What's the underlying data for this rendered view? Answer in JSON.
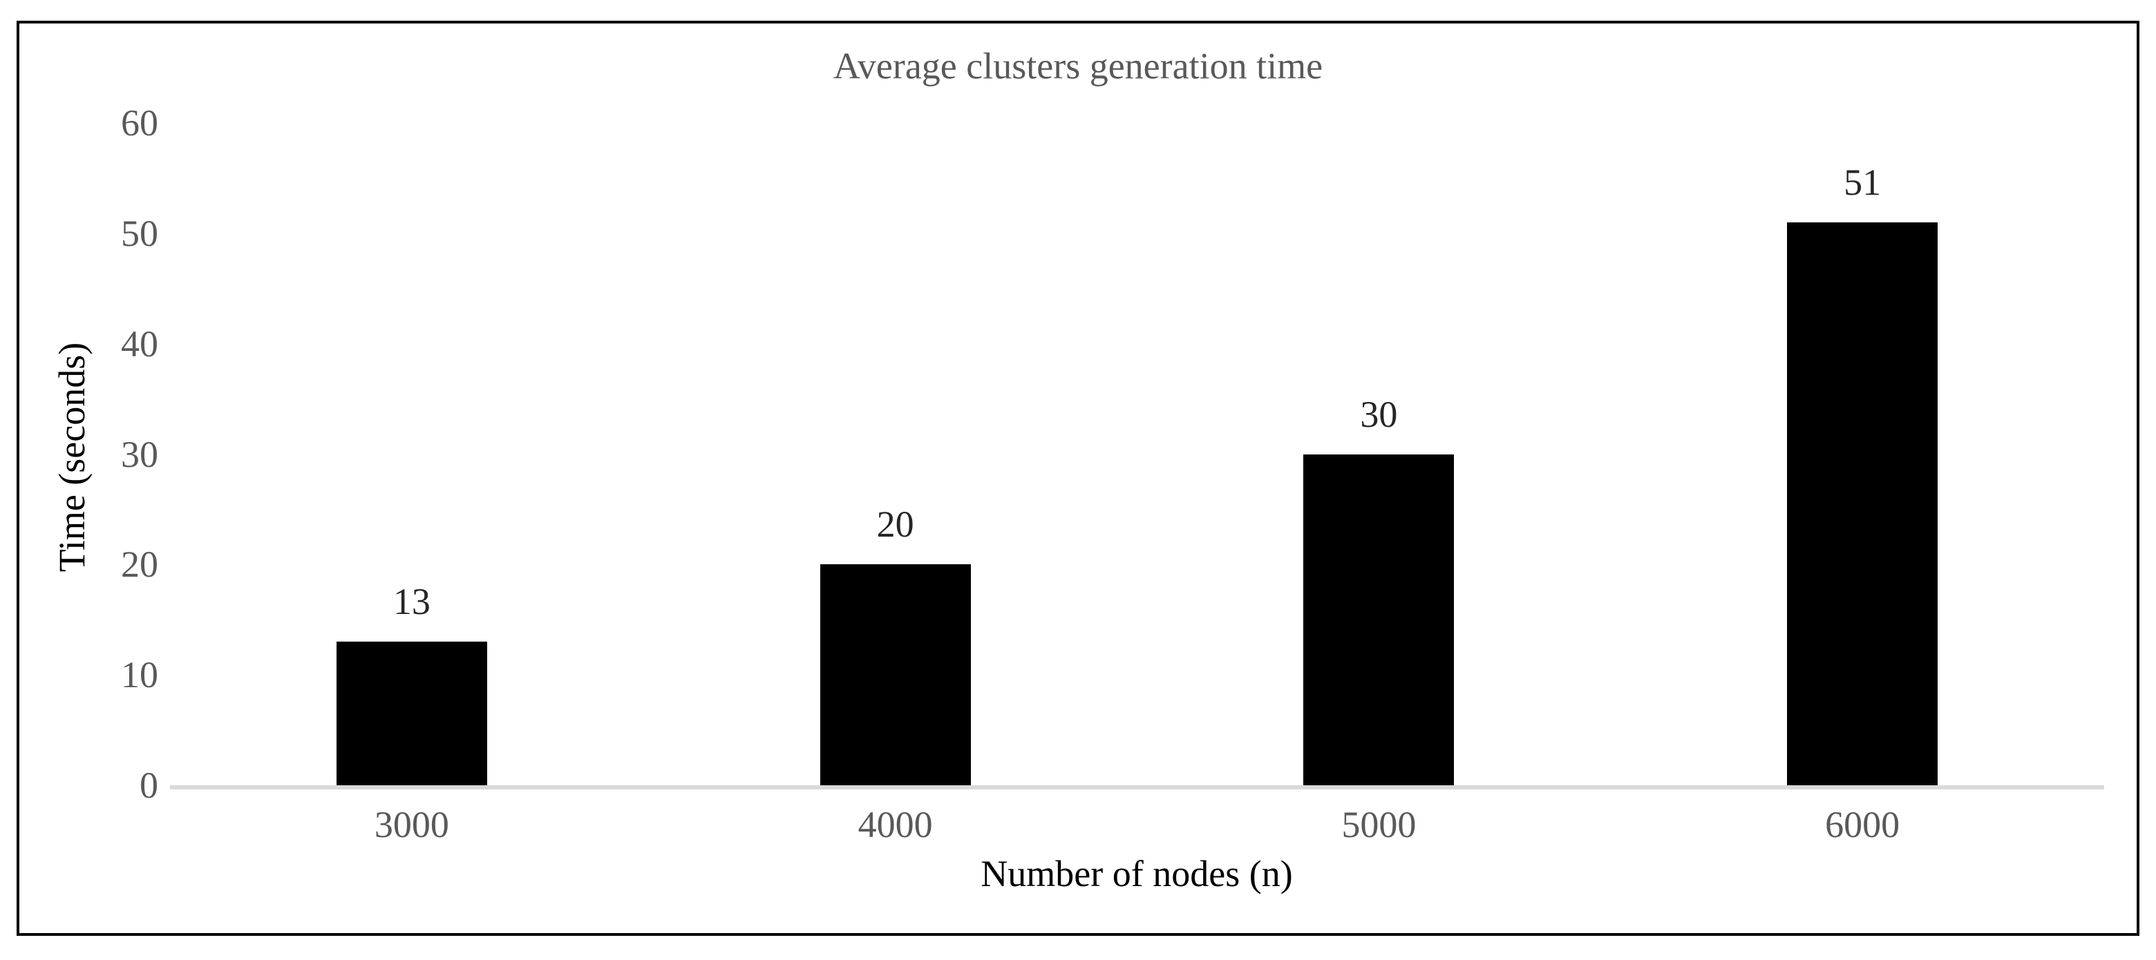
{
  "chart": {
    "title": "Average clusters generation time",
    "x_axis_title": "Number of nodes (n)",
    "y_axis_title": "Time (seconds)"
  },
  "chart_data": {
    "type": "bar",
    "title": "Average clusters generation time",
    "xlabel": "Number of nodes (n)",
    "ylabel": "Time (seconds)",
    "categories": [
      "3000",
      "4000",
      "5000",
      "6000"
    ],
    "values": [
      13,
      20,
      30,
      51
    ],
    "data_labels": [
      "13",
      "20",
      "30",
      "51"
    ],
    "y_ticks": [
      0,
      10,
      20,
      30,
      40,
      50,
      60
    ],
    "ylim": [
      0,
      60
    ],
    "grid": false,
    "legend": false,
    "colors": {
      "bar_fill": "#000000",
      "axis_line": "#d9d9d9",
      "muted_text": "#595959",
      "value_text": "#262626",
      "axis_title_text": "#000000",
      "frame_border": "#000000"
    }
  }
}
